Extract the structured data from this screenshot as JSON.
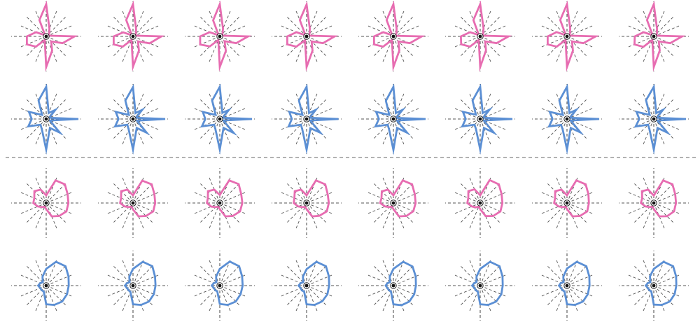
{
  "figure": {
    "background": "#ffffff",
    "colors": {
      "pink": "#e76cb1",
      "blue": "#5b8fd4",
      "axis": "#555555",
      "divider": "#999999"
    }
  },
  "chart_data": {
    "type": "radar",
    "spokes": 16,
    "rows": 4,
    "glyphs_per_row": 8,
    "radius_range": [
      0,
      1
    ],
    "series": [
      {
        "group": "top",
        "row": 1,
        "color": "pink",
        "glyphs": [
          [
            1.0,
            0.26,
            0.13,
            0.06,
            0.88,
            0.55,
            0.22,
            0.48,
            0.95,
            0.12,
            0.45,
            0.65,
            0.6,
            0.34,
            0.05,
            0.55
          ],
          [
            1.0,
            0.25,
            0.13,
            0.06,
            0.88,
            0.56,
            0.22,
            0.48,
            0.94,
            0.12,
            0.45,
            0.65,
            0.6,
            0.33,
            0.05,
            0.55
          ],
          [
            1.0,
            0.26,
            0.12,
            0.06,
            0.88,
            0.55,
            0.21,
            0.49,
            0.95,
            0.12,
            0.44,
            0.66,
            0.61,
            0.34,
            0.05,
            0.54
          ],
          [
            0.99,
            0.26,
            0.13,
            0.06,
            0.87,
            0.55,
            0.22,
            0.48,
            0.95,
            0.13,
            0.45,
            0.65,
            0.6,
            0.34,
            0.05,
            0.55
          ],
          [
            1.0,
            0.26,
            0.13,
            0.05,
            0.88,
            0.55,
            0.22,
            0.48,
            0.95,
            0.12,
            0.45,
            0.65,
            0.6,
            0.34,
            0.05,
            0.55
          ],
          [
            1.0,
            0.27,
            0.13,
            0.06,
            0.88,
            0.55,
            0.22,
            0.47,
            0.95,
            0.12,
            0.45,
            0.64,
            0.6,
            0.34,
            0.06,
            0.55
          ],
          [
            1.0,
            0.26,
            0.13,
            0.06,
            0.89,
            0.55,
            0.22,
            0.48,
            0.95,
            0.12,
            0.45,
            0.65,
            0.6,
            0.35,
            0.05,
            0.55
          ],
          [
            1.0,
            0.26,
            0.14,
            0.06,
            0.88,
            0.55,
            0.22,
            0.48,
            0.95,
            0.12,
            0.46,
            0.65,
            0.59,
            0.34,
            0.05,
            0.55
          ]
        ]
      },
      {
        "group": "top",
        "row": 2,
        "color": "blue",
        "glyphs": [
          [
            1.0,
            0.2,
            0.4,
            0.1,
            1.0,
            0.12,
            0.6,
            0.3,
            0.95,
            0.35,
            0.25,
            0.6,
            0.45,
            0.58,
            0.18,
            0.62
          ],
          [
            0.99,
            0.2,
            0.4,
            0.1,
            1.0,
            0.13,
            0.6,
            0.3,
            0.95,
            0.35,
            0.25,
            0.6,
            0.45,
            0.58,
            0.18,
            0.62
          ],
          [
            1.0,
            0.21,
            0.39,
            0.1,
            1.0,
            0.12,
            0.61,
            0.3,
            0.95,
            0.35,
            0.25,
            0.6,
            0.45,
            0.57,
            0.18,
            0.62
          ],
          [
            1.0,
            0.2,
            0.4,
            0.1,
            0.99,
            0.12,
            0.6,
            0.31,
            0.95,
            0.35,
            0.25,
            0.6,
            0.46,
            0.58,
            0.18,
            0.62
          ],
          [
            1.0,
            0.2,
            0.4,
            0.09,
            1.0,
            0.12,
            0.6,
            0.3,
            0.96,
            0.35,
            0.25,
            0.6,
            0.45,
            0.58,
            0.18,
            0.61
          ],
          [
            1.0,
            0.2,
            0.41,
            0.1,
            1.0,
            0.12,
            0.6,
            0.3,
            0.95,
            0.34,
            0.25,
            0.6,
            0.45,
            0.58,
            0.19,
            0.62
          ],
          [
            1.0,
            0.2,
            0.4,
            0.1,
            1.0,
            0.12,
            0.59,
            0.3,
            0.95,
            0.35,
            0.26,
            0.6,
            0.45,
            0.58,
            0.18,
            0.62
          ],
          [
            1.0,
            0.2,
            0.4,
            0.1,
            1.0,
            0.12,
            0.6,
            0.3,
            0.95,
            0.35,
            0.25,
            0.61,
            0.45,
            0.58,
            0.18,
            0.63
          ]
        ]
      },
      {
        "group": "bottom",
        "row": 3,
        "color": "pink",
        "glyphs": [
          [
            0.24,
            0.76,
            0.82,
            0.72,
            0.69,
            0.68,
            0.57,
            0.45,
            0.19,
            0.12,
            0.18,
            0.28,
            0.4,
            0.4,
            0.52,
            0.45
          ],
          [
            0.24,
            0.75,
            0.82,
            0.72,
            0.69,
            0.68,
            0.57,
            0.45,
            0.2,
            0.12,
            0.18,
            0.28,
            0.4,
            0.4,
            0.52,
            0.45
          ],
          [
            0.25,
            0.76,
            0.83,
            0.72,
            0.7,
            0.68,
            0.57,
            0.45,
            0.19,
            0.12,
            0.18,
            0.29,
            0.4,
            0.4,
            0.52,
            0.45
          ],
          [
            0.24,
            0.76,
            0.82,
            0.71,
            0.69,
            0.68,
            0.56,
            0.45,
            0.19,
            0.13,
            0.18,
            0.28,
            0.4,
            0.41,
            0.52,
            0.45
          ],
          [
            0.24,
            0.76,
            0.82,
            0.72,
            0.69,
            0.67,
            0.57,
            0.45,
            0.19,
            0.12,
            0.18,
            0.28,
            0.41,
            0.4,
            0.51,
            0.45
          ],
          [
            0.24,
            0.77,
            0.82,
            0.72,
            0.69,
            0.68,
            0.57,
            0.44,
            0.19,
            0.12,
            0.19,
            0.28,
            0.4,
            0.4,
            0.52,
            0.46
          ],
          [
            0.24,
            0.76,
            0.82,
            0.72,
            0.68,
            0.68,
            0.57,
            0.45,
            0.19,
            0.12,
            0.18,
            0.28,
            0.4,
            0.4,
            0.52,
            0.45
          ],
          [
            0.23,
            0.76,
            0.82,
            0.72,
            0.69,
            0.68,
            0.58,
            0.45,
            0.19,
            0.12,
            0.18,
            0.28,
            0.4,
            0.39,
            0.52,
            0.45
          ]
        ]
      },
      {
        "group": "bottom",
        "row": 4,
        "color": "blue",
        "glyphs": [
          [
            0.52,
            0.8,
            0.85,
            0.75,
            0.7,
            0.7,
            0.7,
            0.65,
            0.58,
            0.2,
            0.2,
            0.2,
            0.25,
            0.2,
            0.15,
            0.3
          ],
          [
            0.52,
            0.8,
            0.85,
            0.74,
            0.7,
            0.7,
            0.7,
            0.65,
            0.58,
            0.21,
            0.2,
            0.2,
            0.25,
            0.2,
            0.15,
            0.3
          ],
          [
            0.52,
            0.81,
            0.85,
            0.75,
            0.71,
            0.7,
            0.7,
            0.65,
            0.57,
            0.2,
            0.2,
            0.2,
            0.25,
            0.2,
            0.15,
            0.3
          ],
          [
            0.51,
            0.8,
            0.85,
            0.75,
            0.7,
            0.7,
            0.69,
            0.65,
            0.58,
            0.2,
            0.21,
            0.2,
            0.25,
            0.2,
            0.15,
            0.3
          ],
          [
            0.52,
            0.8,
            0.84,
            0.75,
            0.7,
            0.7,
            0.7,
            0.66,
            0.58,
            0.2,
            0.2,
            0.2,
            0.24,
            0.2,
            0.15,
            0.3
          ],
          [
            0.52,
            0.8,
            0.85,
            0.75,
            0.7,
            0.71,
            0.7,
            0.65,
            0.58,
            0.2,
            0.2,
            0.19,
            0.25,
            0.2,
            0.16,
            0.3
          ],
          [
            0.53,
            0.8,
            0.85,
            0.75,
            0.7,
            0.7,
            0.7,
            0.65,
            0.58,
            0.2,
            0.2,
            0.2,
            0.25,
            0.21,
            0.15,
            0.3
          ],
          [
            0.52,
            0.8,
            0.85,
            0.75,
            0.7,
            0.7,
            0.7,
            0.65,
            0.59,
            0.2,
            0.2,
            0.2,
            0.25,
            0.2,
            0.15,
            0.31
          ]
        ]
      }
    ]
  }
}
